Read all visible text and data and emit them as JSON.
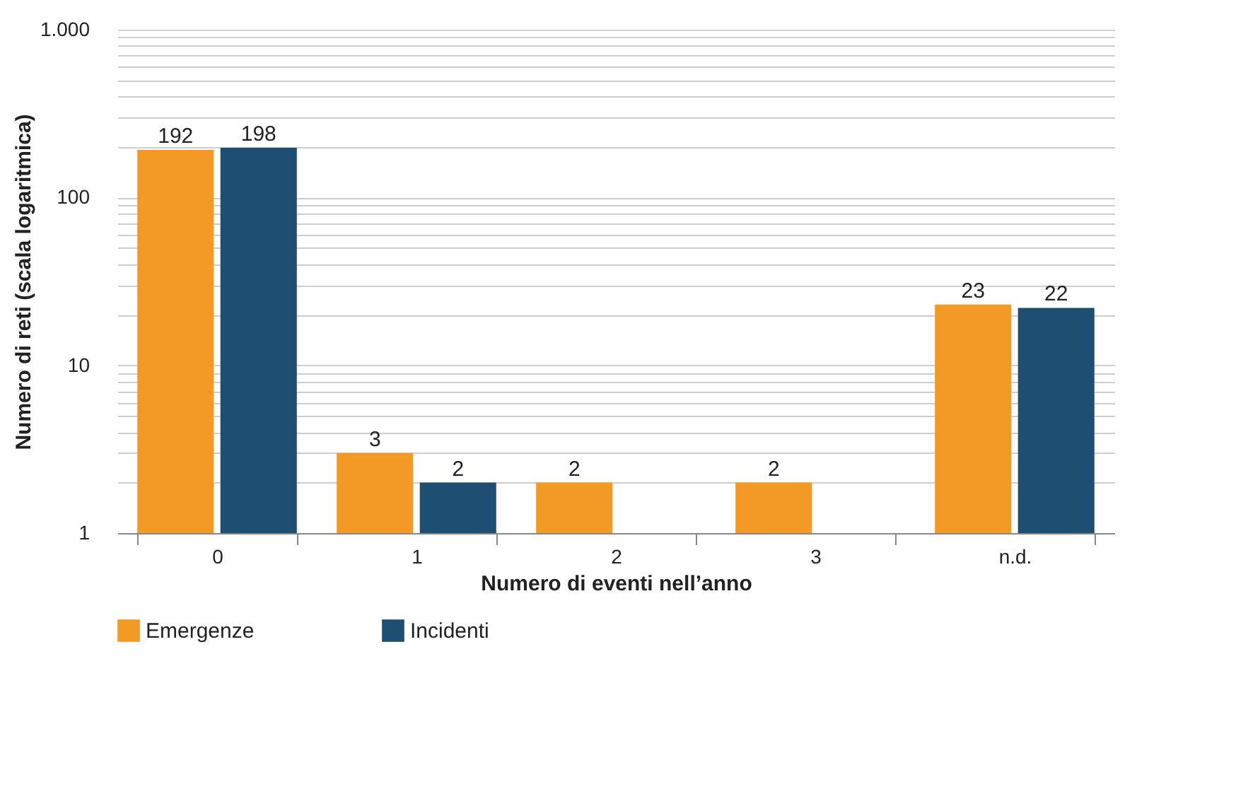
{
  "chart_data": {
    "type": "bar",
    "xlabel": "Numero di eventi nell’anno",
    "ylabel": "Numero di reti (scala logaritmica)",
    "categories": [
      "0",
      "1",
      "2",
      "3",
      "n.d."
    ],
    "series": [
      {
        "name": "Emergenze",
        "color": "#f39a26",
        "values": [
          192,
          3,
          2,
          2,
          23
        ]
      },
      {
        "name": "Incidenti",
        "color": "#1f4e73",
        "values": [
          198,
          2,
          null,
          null,
          22
        ]
      }
    ],
    "log": "y",
    "ylim": [
      1,
      1000
    ],
    "yticks": [
      1,
      {
        "value": 2,
        "label": null
      },
      {
        "value": 3,
        "label": null
      },
      {
        "value": 4,
        "label": null
      },
      {
        "value": 5,
        "label": null
      },
      {
        "value": 6,
        "label": null
      },
      {
        "value": 7,
        "label": null
      },
      {
        "value": 8,
        "label": null
      },
      {
        "value": 9,
        "label": null
      },
      10,
      {
        "value": 20,
        "label": null
      },
      {
        "value": 30,
        "label": null
      },
      {
        "value": 40,
        "label": null
      },
      {
        "value": 50,
        "label": null
      },
      {
        "value": 60,
        "label": null
      },
      {
        "value": 70,
        "label": null
      },
      {
        "value": 80,
        "label": null
      },
      {
        "value": 90,
        "label": null
      },
      100,
      {
        "value": 200,
        "label": null
      },
      {
        "value": 300,
        "label": null
      },
      {
        "value": 400,
        "label": null
      },
      {
        "value": 500,
        "label": null
      },
      {
        "value": 600,
        "label": null
      },
      {
        "value": 700,
        "label": null
      },
      {
        "value": 800,
        "label": null
      },
      {
        "value": 900,
        "label": null
      },
      {
        "value": 1000,
        "label": "1.000"
      }
    ],
    "grid": "y",
    "legend": "bottom",
    "data_labels": true
  }
}
